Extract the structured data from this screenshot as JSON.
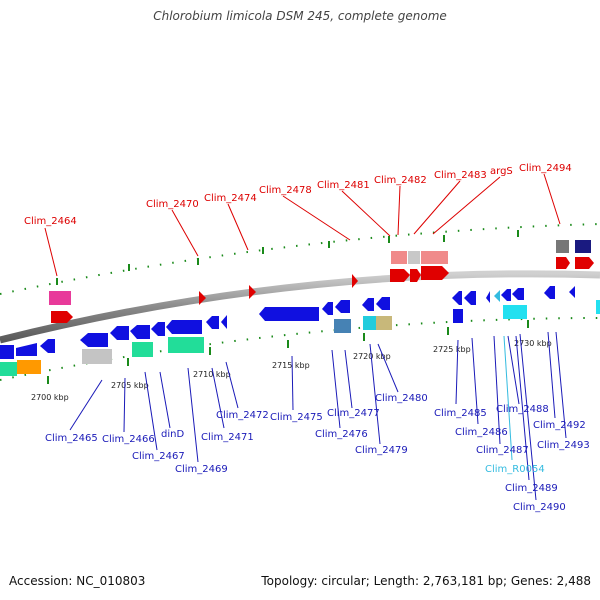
{
  "title": "Chlorobium limicola DSM 245, complete genome",
  "footer": {
    "accession": "Accession: NC_010803",
    "summary": "Topology: circular; Length: 2,763,181 bp; Genes: 2,488"
  },
  "scale": {
    "kbp_2700": "2700 kbp",
    "kbp_2705": "2705 kbp",
    "kbp_2710": "2710 kbp",
    "kbp_2715": "2715 kbp",
    "kbp_2720": "2720 kbp",
    "kbp_2725": "2725 kbp",
    "kbp_2730": "2730 kbp"
  },
  "labels_top": {
    "clim_2464": "Clim_2464",
    "clim_2470": "Clim_2470",
    "clim_2474": "Clim_2474",
    "clim_2478": "Clim_2478",
    "clim_2481": "Clim_2481",
    "clim_2482": "Clim_2482",
    "clim_2483": "Clim_2483",
    "argS": "argS",
    "clim_2494": "Clim_2494"
  },
  "labels_bottom": {
    "clim_2465": "Clim_2465",
    "clim_2466": "Clim_2466",
    "clim_2467": "Clim_2467",
    "dinD": "dinD",
    "clim_2469": "Clim_2469",
    "clim_2471": "Clim_2471",
    "clim_2472": "Clim_2472",
    "clim_2475": "Clim_2475",
    "clim_2476": "Clim_2476",
    "clim_2477": "Clim_2477",
    "clim_2479": "Clim_2479",
    "clim_2480": "Clim_2480",
    "clim_2485": "Clim_2485",
    "clim_2486": "Clim_2486",
    "clim_2487": "Clim_2487",
    "clim_2488": "Clim_2488",
    "clim_r0054": "Clim_R0054",
    "clim_2489": "Clim_2489",
    "clim_2490": "Clim_2490",
    "clim_2492": "Clim_2492",
    "clim_2493": "Clim_2493"
  },
  "colors": {
    "top_label": "#dd0000",
    "bottom_label": "#1a1ab8",
    "rna_label": "#33bbe0",
    "forward_gene": "#e00000",
    "reverse_gene": "#1010e0",
    "tick": "#1a8a1a",
    "backbone": "#909090"
  }
}
